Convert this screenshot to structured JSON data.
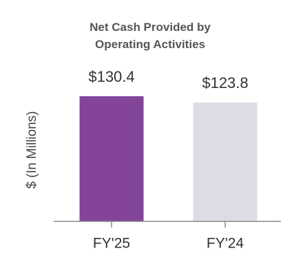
{
  "chart_data": {
    "type": "bar",
    "title": "Net Cash Provided by Operating Activities",
    "y_label": "$ (In Millions)",
    "categories": [
      "FY'25",
      "FY'24"
    ],
    "values": [
      130.4,
      123.8
    ],
    "value_labels": [
      "$130.4",
      "$123.8"
    ],
    "colors": [
      "#83449a",
      "#dcdce6"
    ]
  }
}
